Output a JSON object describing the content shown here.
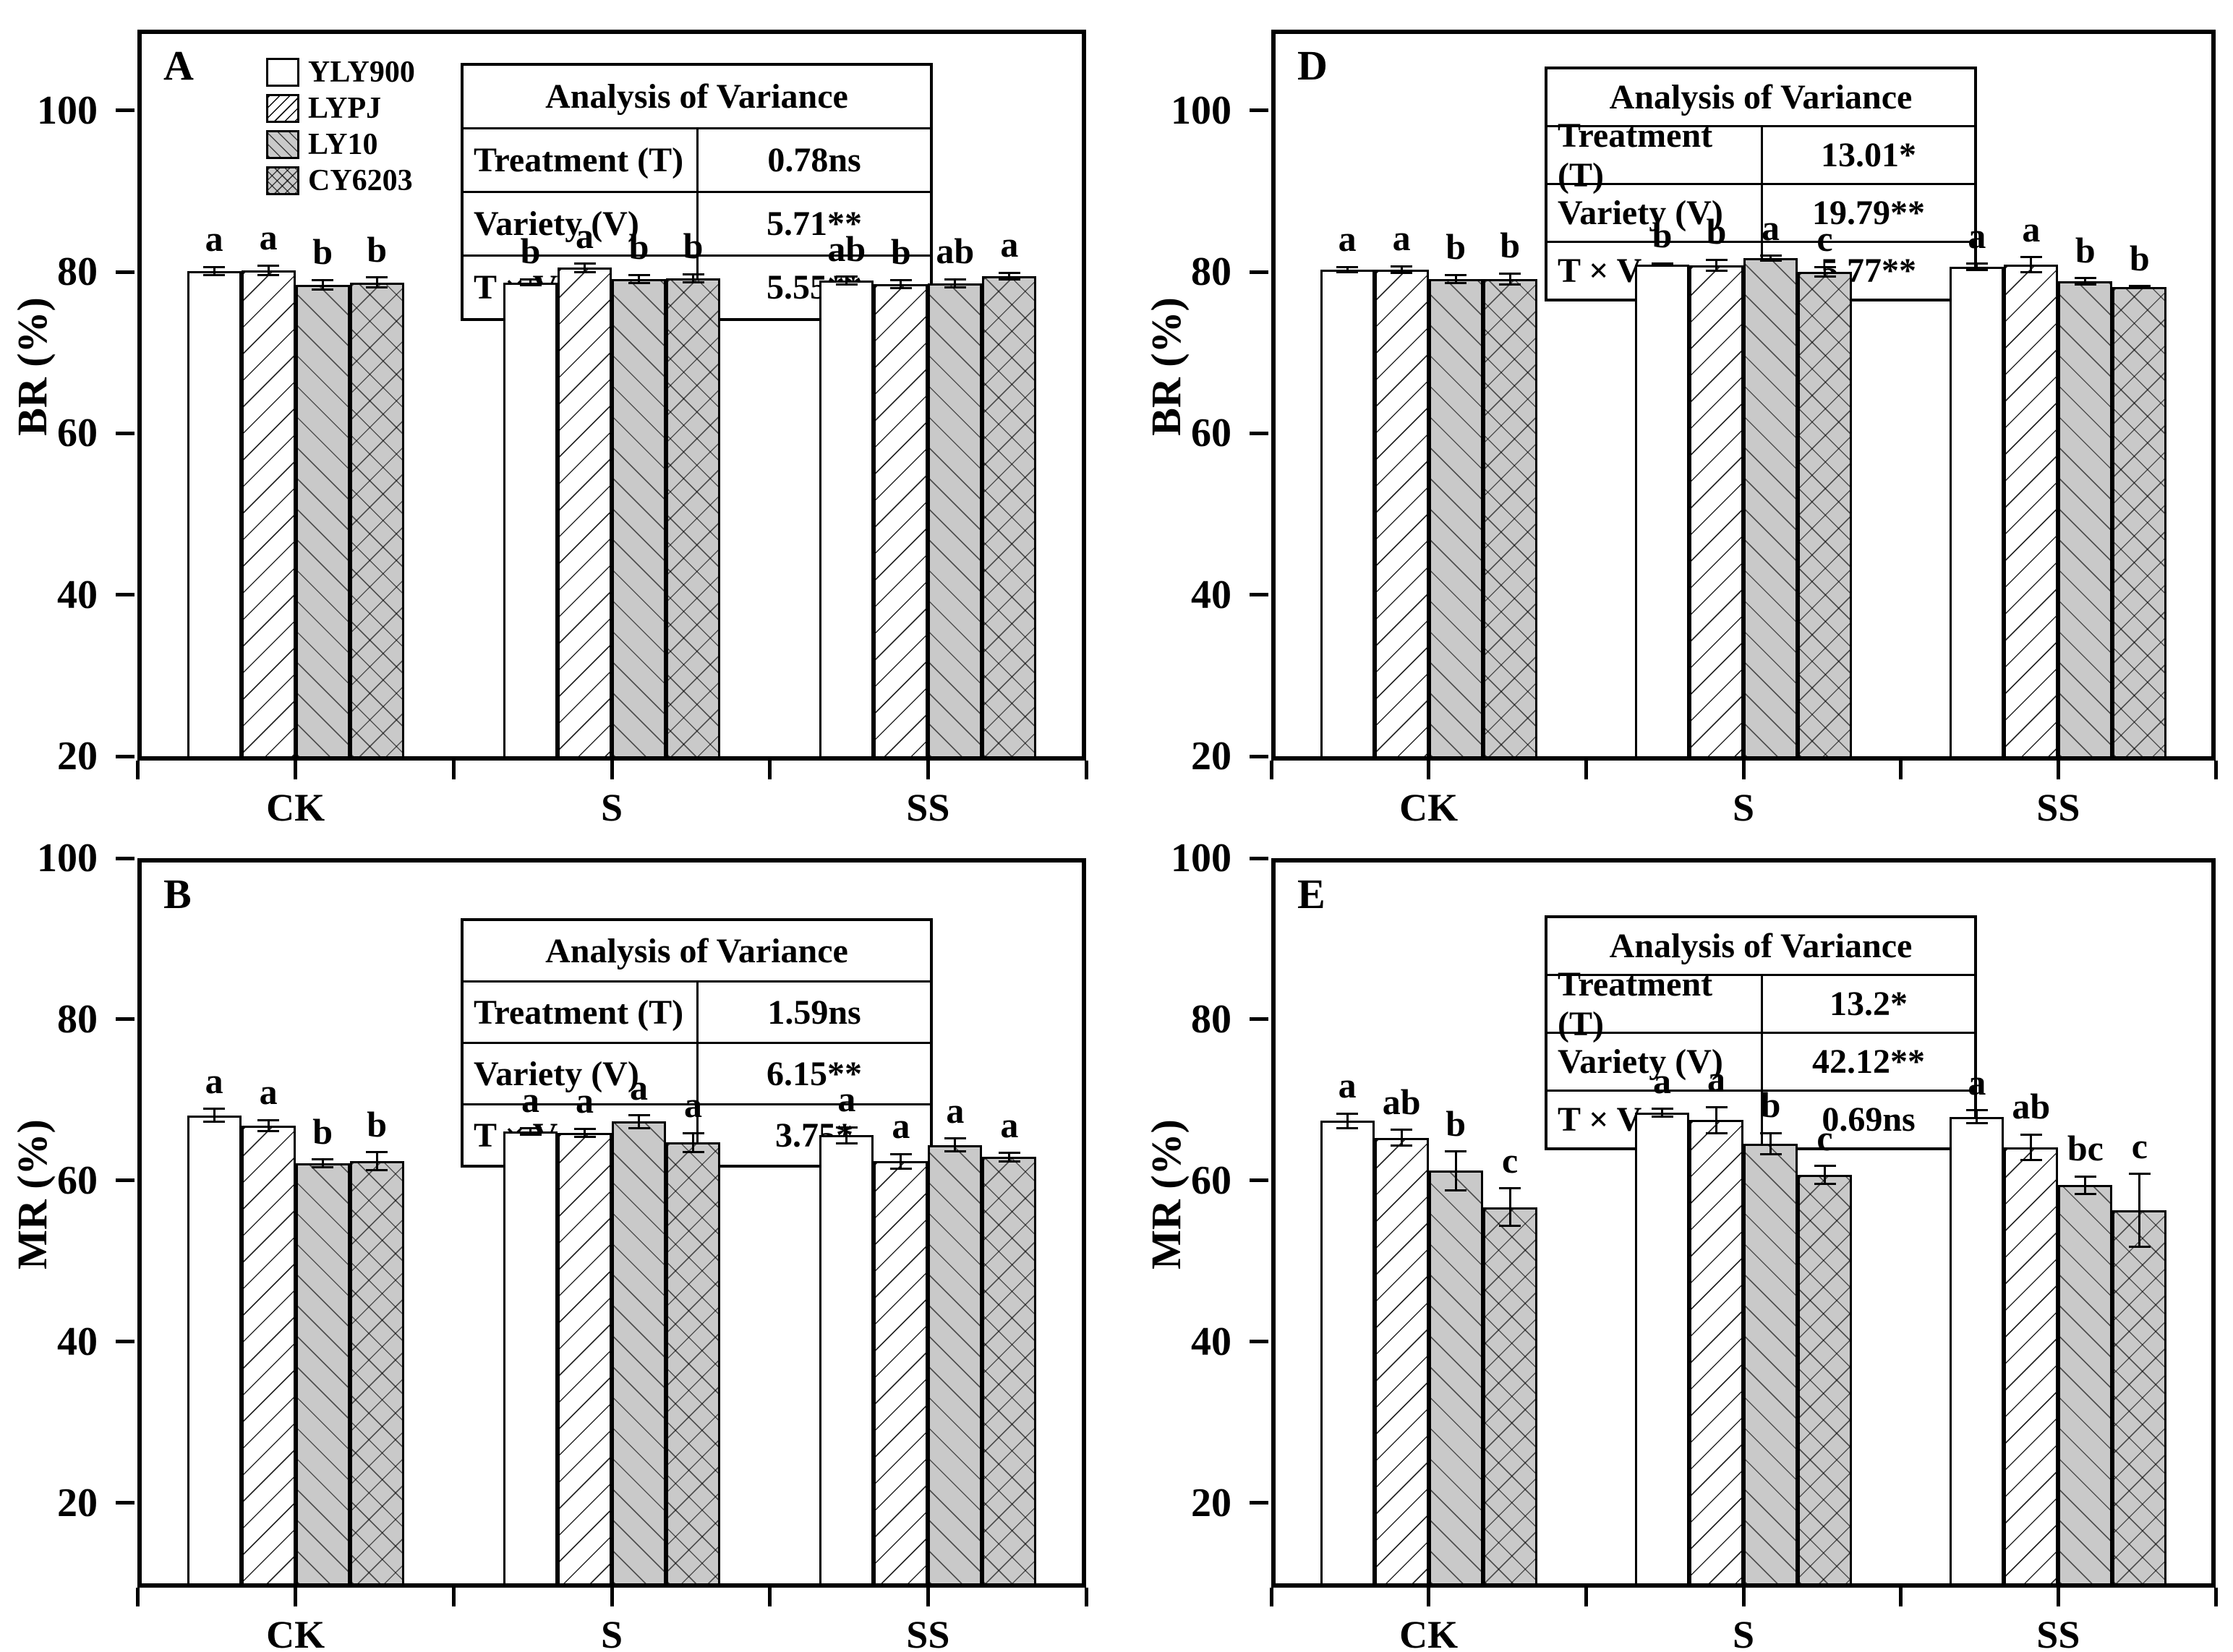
{
  "chart_data": {
    "type": "bar",
    "categories": [
      "CK",
      "S",
      "SS"
    ],
    "legend": {
      "position": "top-left inside panel A",
      "items": [
        {
          "label": "YLY900",
          "pattern": "plain-white"
        },
        {
          "label": "LYPJ",
          "pattern": "diagonal-up-hatch"
        },
        {
          "label": "LY10",
          "pattern": "diagonal-down-hatch-gray"
        },
        {
          "label": "CY6203",
          "pattern": "crosshatch-gray"
        }
      ]
    },
    "colors": {
      "bar_gray": "#c9c9c9",
      "line": "#000000",
      "background": "#ffffff"
    },
    "panels": [
      {
        "letter": "A",
        "ylabel": "BR (%)",
        "ymin": 20,
        "ymax": 110,
        "yticks": [
          100,
          80,
          60,
          40,
          20
        ],
        "anova": {
          "title": "Analysis of Variance",
          "rows": [
            {
              "label": "Treatment (T)",
              "value": "0.78ns"
            },
            {
              "label": "Variety (V)",
              "value": "5.71**"
            },
            {
              "label": "T × V",
              "value": "5.55**"
            }
          ]
        },
        "series": [
          {
            "name": "YLY900",
            "values": [
              80.1,
              78.7,
              78.9
            ],
            "errors": [
              0.5,
              0.4,
              0.5
            ],
            "letters": [
              "a",
              "b",
              "ab"
            ]
          },
          {
            "name": "LYPJ",
            "values": [
              80.2,
              80.5,
              78.5
            ],
            "errors": [
              0.6,
              0.5,
              0.5
            ],
            "letters": [
              "a",
              "a",
              "b"
            ]
          },
          {
            "name": "LY10",
            "values": [
              78.4,
              79.1,
              78.6
            ],
            "errors": [
              0.6,
              0.5,
              0.5
            ],
            "letters": [
              "b",
              "b",
              "ab"
            ]
          },
          {
            "name": "CY6203",
            "values": [
              78.7,
              79.2,
              79.5
            ],
            "errors": [
              0.6,
              0.5,
              0.4
            ],
            "letters": [
              "b",
              "b",
              "a"
            ]
          }
        ]
      },
      {
        "letter": "D",
        "ylabel": "BR (%)",
        "ymin": 20,
        "ymax": 110,
        "yticks": [
          100,
          80,
          60,
          40,
          20
        ],
        "anova": {
          "title": "Analysis of Variance",
          "rows": [
            {
              "label": "Treatment (T)",
              "value": "13.01*"
            },
            {
              "label": "Variety (V)",
              "value": "19.79**"
            },
            {
              "label": "T × V",
              "value": "5.77**"
            }
          ]
        },
        "series": [
          {
            "name": "YLY900",
            "values": [
              80.3,
              80.9,
              80.6
            ],
            "errors": [
              0.3,
              0.15,
              0.4
            ],
            "letters": [
              "a",
              "b",
              "a"
            ]
          },
          {
            "name": "LYPJ",
            "values": [
              80.3,
              80.8,
              80.9
            ],
            "errors": [
              0.4,
              0.7,
              0.9
            ],
            "letters": [
              "a",
              "b",
              "a"
            ]
          },
          {
            "name": "LY10",
            "values": [
              79.1,
              81.7,
              78.8
            ],
            "errors": [
              0.5,
              0.3,
              0.4
            ],
            "letters": [
              "b",
              "a",
              "b"
            ]
          },
          {
            "name": "CY6203",
            "values": [
              79.1,
              80.0,
              78.1
            ],
            "errors": [
              0.7,
              0.6,
              0.15
            ],
            "letters": [
              "b",
              "c",
              "b"
            ]
          }
        ]
      },
      {
        "letter": "B",
        "ylabel": "MR (%)",
        "ymin": 10,
        "ymax": 100,
        "yticks": [
          100,
          80,
          60,
          40,
          20
        ],
        "anova": {
          "title": "Analysis of Variance",
          "rows": [
            {
              "label": "Treatment (T)",
              "value": "1.59ns"
            },
            {
              "label": "Variety (V)",
              "value": "6.15**"
            },
            {
              "label": "T × V",
              "value": "3.75*"
            }
          ]
        },
        "series": [
          {
            "name": "YLY900",
            "values": [
              68.1,
              66.1,
              65.6
            ],
            "errors": [
              0.8,
              0.4,
              1.0
            ],
            "letters": [
              "a",
              "a",
              "a"
            ]
          },
          {
            "name": "LYPJ",
            "values": [
              66.8,
              65.9,
              62.4
            ],
            "errors": [
              0.7,
              0.5,
              0.9
            ],
            "letters": [
              "a",
              "a",
              "a"
            ]
          },
          {
            "name": "LY10",
            "values": [
              62.1,
              67.3,
              64.4
            ],
            "errors": [
              0.5,
              0.8,
              0.8
            ],
            "letters": [
              "b",
              "a",
              "a"
            ]
          },
          {
            "name": "CY6203",
            "values": [
              62.4,
              64.7,
              62.9
            ],
            "errors": [
              1.1,
              1.2,
              0.5
            ],
            "letters": [
              "b",
              "a",
              "a"
            ]
          }
        ]
      },
      {
        "letter": "E",
        "ylabel": "MR (%)",
        "ymin": 10,
        "ymax": 100,
        "yticks": [
          100,
          80,
          60,
          40,
          20
        ],
        "anova": {
          "title": "Analysis of Variance",
          "rows": [
            {
              "label": "Treatment (T)",
              "value": "13.2*"
            },
            {
              "label": "Variety (V)",
              "value": "42.12**"
            },
            {
              "label": "T × V",
              "value": "0.69ns"
            }
          ]
        },
        "series": [
          {
            "name": "YLY900",
            "values": [
              67.4,
              68.4,
              67.9
            ],
            "errors": [
              0.9,
              0.5,
              0.8
            ],
            "letters": [
              "a",
              "a",
              "a"
            ]
          },
          {
            "name": "LYPJ",
            "values": [
              65.3,
              67.5,
              64.1
            ],
            "errors": [
              1.0,
              1.6,
              1.6
            ],
            "letters": [
              "ab",
              "a",
              "ab"
            ]
          },
          {
            "name": "LY10",
            "values": [
              61.2,
              64.6,
              59.4
            ],
            "errors": [
              2.4,
              1.3,
              1.1
            ],
            "letters": [
              "b",
              "b",
              "bc"
            ]
          },
          {
            "name": "CY6203",
            "values": [
              56.7,
              60.7,
              56.3
            ],
            "errors": [
              2.3,
              1.1,
              4.5
            ],
            "letters": [
              "c",
              "c",
              "c"
            ]
          }
        ]
      }
    ]
  }
}
